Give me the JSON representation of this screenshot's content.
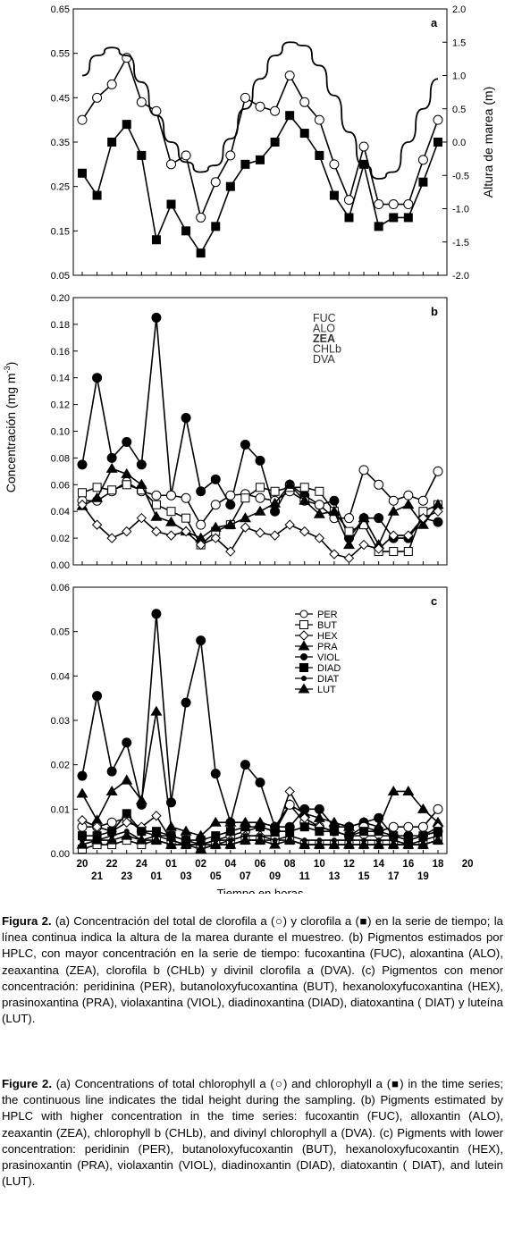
{
  "chart_data": [
    {
      "type": "line",
      "panel_letter": "a",
      "ylabel_right": "Altura de marea (m)",
      "ylim_left": [
        0.05,
        0.65
      ],
      "yticks_left": [
        "0.05",
        "0.15",
        "0.25",
        "0.35",
        "0.45",
        "0.55",
        "0.65"
      ],
      "ylim_right": [
        -2.0,
        2.0
      ],
      "yticks_right": [
        "-2.0",
        "-1.5",
        "-1.0",
        "-0.5",
        "0.0",
        "0.5",
        "1.0",
        "1.5",
        "2.0"
      ],
      "x": [
        0,
        1,
        2,
        3,
        4,
        5,
        6,
        7,
        8,
        9,
        10,
        11,
        12,
        13,
        14,
        15,
        16,
        17,
        18,
        19,
        20,
        21,
        22,
        23,
        24
      ],
      "series": [
        {
          "axis": "left",
          "marker": "open-circle",
          "values": [
            0.4,
            0.45,
            0.48,
            0.54,
            0.44,
            0.42,
            0.3,
            0.32,
            0.18,
            0.26,
            0.32,
            0.45,
            0.43,
            0.42,
            0.5,
            0.44,
            0.4,
            0.3,
            0.22,
            0.34,
            0.21,
            0.21,
            0.21,
            0.31,
            0.4
          ]
        },
        {
          "axis": "left",
          "marker": "filled-square",
          "values": [
            0.28,
            0.23,
            0.35,
            0.39,
            0.32,
            0.13,
            0.21,
            0.15,
            0.1,
            0.16,
            0.25,
            0.3,
            0.31,
            0.35,
            0.41,
            0.37,
            0.32,
            0.23,
            0.18,
            0.3,
            0.16,
            0.18,
            0.18,
            0.26,
            0.35
          ]
        },
        {
          "axis": "right",
          "marker": "line",
          "values": [
            1.0,
            1.3,
            1.42,
            1.3,
            0.9,
            0.4,
            0.0,
            -0.3,
            -0.45,
            -0.35,
            0.05,
            0.5,
            0.95,
            1.3,
            1.5,
            1.45,
            1.15,
            0.7,
            0.15,
            -0.35,
            -0.55,
            -0.45,
            0.0,
            0.5,
            0.95
          ]
        }
      ]
    },
    {
      "type": "line",
      "panel_letter": "b",
      "ylim": [
        0.0,
        0.2
      ],
      "yticks": [
        "0.00",
        "0.02",
        "0.04",
        "0.06",
        "0.08",
        "0.10",
        "0.12",
        "0.14",
        "0.16",
        "0.18",
        "0.20"
      ],
      "legend": [
        "FUC",
        "ALO",
        "ZEA",
        "CHLb",
        "DVA"
      ],
      "x": [
        0,
        1,
        2,
        3,
        4,
        5,
        6,
        7,
        8,
        9,
        10,
        11,
        12,
        13,
        14,
        15,
        16,
        17,
        18,
        19,
        20,
        21,
        22,
        23,
        24
      ],
      "series": [
        {
          "marker": "filled-circle",
          "values": [
            0.075,
            0.14,
            0.08,
            0.092,
            0.075,
            0.185,
            0.052,
            0.11,
            0.055,
            0.064,
            0.045,
            0.09,
            0.078,
            0.04,
            0.06,
            0.052,
            0.045,
            0.048,
            0.02,
            0.035,
            0.035,
            0.02,
            0.02,
            0.035,
            0.032
          ]
        },
        {
          "marker": "open-circle",
          "values": [
            0.048,
            0.048,
            0.055,
            0.062,
            0.055,
            0.052,
            0.052,
            0.05,
            0.03,
            0.045,
            0.052,
            0.053,
            0.05,
            0.048,
            0.055,
            0.048,
            0.045,
            0.035,
            0.035,
            0.071,
            0.06,
            0.048,
            0.052,
            0.048,
            0.07
          ]
        },
        {
          "marker": "open-square",
          "values": [
            0.054,
            0.058,
            0.056,
            0.06,
            0.056,
            0.045,
            0.04,
            0.035,
            0.015,
            0.025,
            0.03,
            0.05,
            0.058,
            0.055,
            0.058,
            0.058,
            0.055,
            0.04,
            0.025,
            0.03,
            0.01,
            0.01,
            0.01,
            0.04,
            0.045
          ]
        },
        {
          "marker": "filled-triangle",
          "values": [
            0.044,
            0.05,
            0.072,
            0.068,
            0.06,
            0.036,
            0.032,
            0.025,
            0.02,
            0.028,
            0.03,
            0.035,
            0.04,
            0.046,
            0.06,
            0.048,
            0.038,
            0.04,
            0.015,
            0.035,
            0.015,
            0.04,
            0.045,
            0.03,
            0.045
          ]
        },
        {
          "marker": "open-diamond",
          "values": [
            0.045,
            0.03,
            0.02,
            0.025,
            0.035,
            0.025,
            0.022,
            0.025,
            0.015,
            0.02,
            0.01,
            0.028,
            0.024,
            0.022,
            0.03,
            0.025,
            0.02,
            0.008,
            0.005,
            0.015,
            0.012,
            0.022,
            0.022,
            0.035,
            0.04
          ]
        }
      ]
    },
    {
      "type": "line",
      "panel_letter": "c",
      "ylim": [
        0.0,
        0.06
      ],
      "yticks": [
        "0.00",
        "0.01",
        "0.02",
        "0.03",
        "0.04",
        "0.05",
        "0.06"
      ],
      "legend": [
        "PER",
        "BUT",
        "HEX",
        "PRA",
        "VIOL",
        "DIAD",
        "DIAT",
        "LUT"
      ],
      "xlabel": "Tiempo en horas",
      "xticks_top": [
        "20",
        "22",
        "24",
        "01",
        "02",
        "04",
        "06",
        "08",
        "10",
        "12",
        "14",
        "16",
        "18",
        "20"
      ],
      "xticks_bottom": [
        "21",
        "23",
        "01",
        "03",
        "05",
        "07",
        "09",
        "11",
        "13",
        "15",
        "17",
        "19"
      ],
      "x": [
        0,
        1,
        2,
        3,
        4,
        5,
        6,
        7,
        8,
        9,
        10,
        11,
        12,
        13,
        14,
        15,
        16,
        17,
        18,
        19,
        20,
        21,
        22,
        23,
        24
      ],
      "series": [
        {
          "marker": "filled-circle",
          "values": [
            0.0175,
            0.0355,
            0.0185,
            0.025,
            0.011,
            0.054,
            0.0115,
            0.034,
            0.048,
            0.018,
            0.007,
            0.02,
            0.016,
            0.006,
            0.006,
            0.01,
            0.01,
            0.006,
            0.006,
            0.007,
            0.008,
            0.004,
            0.004,
            0.004,
            0.005
          ]
        },
        {
          "marker": "filled-triangle",
          "values": [
            0.0135,
            0.0075,
            0.014,
            0.0165,
            0.012,
            0.032,
            0.006,
            0.005,
            0.004,
            0.007,
            0.007,
            0.007,
            0.007,
            0.006,
            0.011,
            0.009,
            0.008,
            0.007,
            0.006,
            0.007,
            0.006,
            0.014,
            0.014,
            0.01,
            0.007
          ]
        },
        {
          "marker": "open-circle",
          "values": [
            0.006,
            0.006,
            0.007,
            0.008,
            0.005,
            0.004,
            0.004,
            0.003,
            0.002,
            0.003,
            0.004,
            0.005,
            0.006,
            0.005,
            0.011,
            0.007,
            0.006,
            0.005,
            0.004,
            0.006,
            0.005,
            0.006,
            0.006,
            0.006,
            0.01
          ]
        },
        {
          "marker": "open-diamond",
          "values": [
            0.0075,
            0.006,
            0.005,
            0.007,
            0.006,
            0.0085,
            0.003,
            0.002,
            0.002,
            0.002,
            0.003,
            0.004,
            0.004,
            0.004,
            0.014,
            0.008,
            0.006,
            0.005,
            0.004,
            0.004,
            0.004,
            0.004,
            0.003,
            0.004,
            0.006
          ]
        },
        {
          "marker": "open-square",
          "values": [
            0.001,
            0.002,
            0.002,
            0.003,
            0.002,
            0.003,
            0.002,
            0.002,
            0.001,
            0.002,
            0.002,
            0.003,
            0.003,
            0.003,
            0.003,
            0.002,
            0.002,
            0.002,
            0.002,
            0.002,
            0.002,
            0.002,
            0.002,
            0.002,
            0.003
          ]
        },
        {
          "marker": "filled-square",
          "values": [
            0.004,
            0.004,
            0.005,
            0.009,
            0.005,
            0.005,
            0.004,
            0.003,
            0.003,
            0.004,
            0.005,
            0.006,
            0.006,
            0.005,
            0.005,
            0.006,
            0.005,
            0.005,
            0.004,
            0.005,
            0.005,
            0.004,
            0.003,
            0.004,
            0.005
          ]
        },
        {
          "marker": "small-filled-circle",
          "values": [
            0.003,
            0.003,
            0.004,
            0.005,
            0.003,
            0.004,
            0.003,
            0.002,
            0.002,
            0.003,
            0.003,
            0.004,
            0.004,
            0.003,
            0.004,
            0.003,
            0.003,
            0.003,
            0.003,
            0.003,
            0.003,
            0.003,
            0.002,
            0.003,
            0.004
          ]
        },
        {
          "marker": "filled-triangle",
          "values": [
            0.002,
            0.003,
            0.003,
            0.004,
            0.003,
            0.003,
            0.002,
            0.002,
            0.001,
            0.002,
            0.002,
            0.003,
            0.003,
            0.002,
            0.003,
            0.002,
            0.002,
            0.002,
            0.002,
            0.002,
            0.002,
            0.002,
            0.002,
            0.002,
            0.003
          ]
        }
      ]
    }
  ],
  "shared_ylabel": "Concentración (mg m",
  "shared_ylabel_sup": "-3",
  "shared_ylabel_end": ")",
  "caption_es": {
    "fig": "Figura 2.",
    "text": "(a) Concentración del total de clorofila a (○) y clorofila a (■) en la serie de tiempo; la línea continua indica la altura de la marea durante el muestreo. (b) Pigmentos estimados por HPLC, con mayor concentración en la serie de tiempo: fucoxantina (FUC), aloxantina (ALO), zeaxantina (ZEA), clorofila b (CHLb) y divinil clorofila a (DVA). (c) Pigmentos con menor concentración: peridinina (PER), butanoloxyfucoxantina (BUT), hexanoloxyfucoxantina (HEX), prasinoxantina (PRA), violaxantina (VIOL), diadinoxantina (DIAD), diatoxantina ( DIAT) y luteína (LUT)."
  },
  "caption_en": {
    "fig": "Figure 2.",
    "text": "(a) Concentrations of total chlorophyll a (○) and chlorophyll a (■) in the time series; the continuous line indicates the tidal height during the sampling. (b) Pigments estimated by HPLC with higher concentration in the time series: fucoxantin (FUC), alloxantin (ALO), zeaxantin (ZEA), chlorophyll b (CHLb), and divinyl chlorophyll a (DVA). (c) Pigments with lower concentration: peridinin (PER), butanoloxyfucoxantin (BUT), hexanoloxyfucoxantin (HEX), prasinoxantin (PRA), violaxantin (VIOL), diadinoxantin (DIAD), diatoxantin ( DIAT), and lutein (LUT)."
  }
}
